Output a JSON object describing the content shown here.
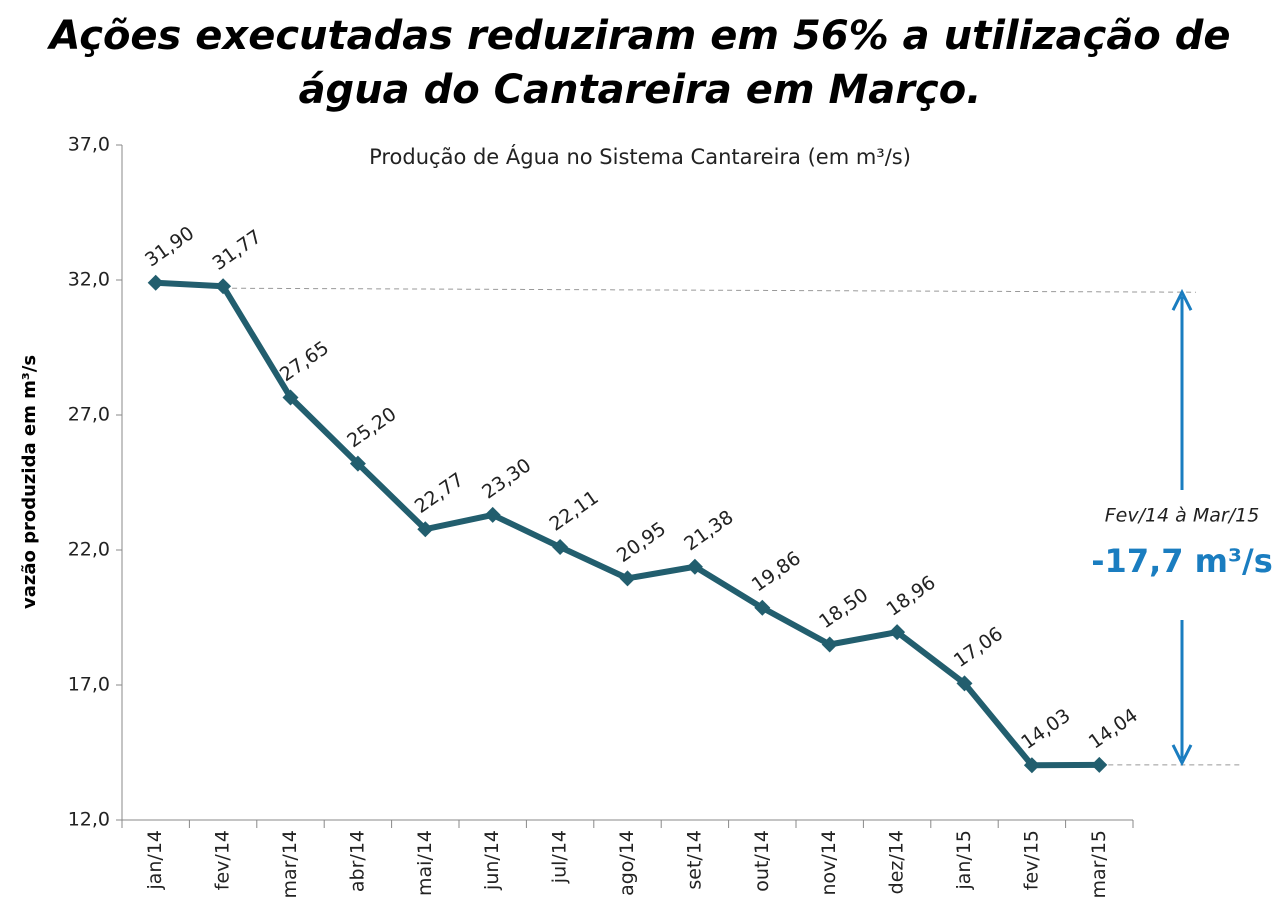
{
  "chart_data": {
    "type": "line",
    "title": [
      "Ações executadas reduziram em 56% a utilização de",
      "água do Cantareira em Março."
    ],
    "subtitle": "Produção de Água no Sistema Cantareira (em m³/s)",
    "y_label": "vazão produzida em m³/s",
    "categories": [
      "jan/14",
      "fev/14",
      "mar/14",
      "abr/14",
      "mai/14",
      "jun/14",
      "jul/14",
      "ago/14",
      "set/14",
      "out/14",
      "nov/14",
      "dez/14",
      "jan/15",
      "fev/15",
      "mar/15"
    ],
    "series": [
      {
        "name": "Produção de Água",
        "color": "#225e6e",
        "values": [
          31.9,
          31.77,
          27.65,
          25.2,
          22.77,
          23.3,
          22.11,
          20.95,
          21.38,
          19.86,
          18.5,
          18.96,
          17.06,
          14.03,
          14.04
        ],
        "value_labels": [
          "31,90",
          "31,77",
          "27,65",
          "25,20",
          "22,77",
          "23,30",
          "22,11",
          "20,95",
          "21,38",
          "19,86",
          "18,50",
          "18,96",
          "17,06",
          "14,03",
          "14,04"
        ]
      }
    ],
    "ylim": [
      12,
      37
    ],
    "yticks": [
      {
        "value": 12,
        "label": "12,0"
      },
      {
        "value": 17,
        "label": "17,0"
      },
      {
        "value": 22,
        "label": "22,0"
      },
      {
        "value": 27,
        "label": "27,0"
      },
      {
        "value": 32,
        "label": "32,0"
      },
      {
        "value": 37,
        "label": "37,0"
      }
    ],
    "annotation": {
      "period": "Fev/14 à Mar/15",
      "difference": "-17,7 m³/s",
      "color": "#1a7dc0"
    }
  }
}
